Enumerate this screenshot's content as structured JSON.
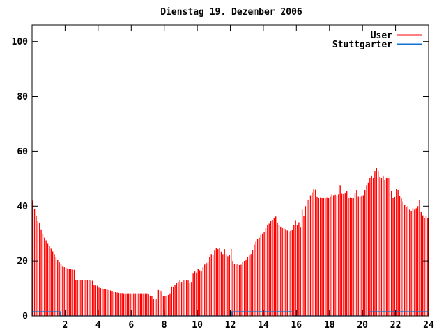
{
  "title": "Dienstag 19. Dezember 2006",
  "legend": {
    "position": "top-right",
    "entries": [
      {
        "label": "User",
        "color": "#ff0000"
      },
      {
        "label": "Stuttgarter",
        "color": "#0e72d2"
      }
    ]
  },
  "axes": {
    "x_tick_labels": [
      "2",
      "4",
      "6",
      "8",
      "10",
      "12",
      "14",
      "16",
      "18",
      "20",
      "22",
      "24"
    ],
    "y_tick_labels": [
      "0",
      "20",
      "40",
      "60",
      "80",
      "100"
    ]
  },
  "chart_data": {
    "type": "bar",
    "subtype": "gnuplot-impulses",
    "title": "Dienstag 19. Dezember 2006",
    "xlabel": "",
    "ylabel": "",
    "xlim": [
      0,
      24
    ],
    "ylim": [
      0,
      106
    ],
    "x_ticks": [
      2,
      4,
      6,
      8,
      10,
      12,
      14,
      16,
      18,
      20,
      22,
      24
    ],
    "y_ticks": [
      0,
      20,
      40,
      60,
      80,
      100
    ],
    "grid": false,
    "legend_position": "top-right",
    "series": [
      {
        "name": "User",
        "style": "impulses",
        "color": "#ff0000",
        "x_start": 0.0,
        "x_step": 0.1,
        "values": [
          42,
          39,
          36.5,
          34.5,
          34,
          31.5,
          30,
          28.5,
          27.5,
          26.5,
          25.5,
          24.5,
          23.5,
          22.5,
          21.5,
          20.5,
          19.5,
          18.8,
          18.2,
          17.8,
          17.5,
          17.3,
          17.1,
          17,
          16.9,
          16.8,
          13.2,
          13.1,
          13,
          13,
          13,
          13,
          13,
          13,
          13,
          12.9,
          12.8,
          11.2,
          11.1,
          11,
          10.3,
          10.1,
          10,
          9.8,
          9.7,
          9.5,
          9.4,
          9.3,
          9.1,
          8.9,
          8.7,
          8.5,
          8.4,
          8.3,
          8.3,
          8.2,
          8.2,
          8.2,
          8.2,
          8.2,
          8.2,
          8.2,
          8.2,
          8.2,
          8.2,
          8.2,
          8.2,
          8.2,
          8.2,
          8.2,
          8.1,
          7.4,
          7.3,
          6.2,
          6.0,
          6.3,
          9.4,
          9.2,
          9.1,
          7.3,
          7.1,
          7.2,
          7.6,
          8.2,
          10.7,
          10.4,
          11.4,
          12.0,
          12.4,
          13.0,
          12.4,
          13.2,
          12.9,
          13.2,
          12.9,
          11.9,
          12.4,
          15.4,
          16.2,
          15.8,
          17.0,
          16.6,
          16.2,
          17.9,
          18.7,
          19.2,
          19.6,
          21.3,
          22.5,
          22.1,
          23.8,
          24.6,
          24.3,
          24.6,
          23.4,
          22.5,
          24.3,
          22.5,
          21.7,
          22.1,
          24.4,
          20.0,
          19.0,
          18.7,
          19.0,
          18.5,
          18.6,
          19.5,
          20.0,
          20.5,
          21.5,
          22.0,
          22.5,
          24.0,
          26.0,
          27.0,
          28.0,
          28.5,
          29.5,
          30.0,
          30.6,
          32.0,
          33.0,
          33.6,
          34.5,
          35.0,
          35.7,
          36.2,
          34.0,
          33.0,
          32.5,
          32.0,
          31.8,
          31.6,
          31.1,
          30.8,
          31.0,
          31.2,
          33.0,
          34.9,
          33.2,
          34.1,
          32.4,
          38.7,
          36.3,
          40.0,
          42.2,
          42.1,
          44.0,
          45.0,
          46.4,
          46.0,
          43.4,
          43.0,
          43.2,
          43.0,
          43.1,
          43.0,
          43.2,
          43.0,
          43.5,
          44.3,
          44.0,
          44.2,
          44.0,
          44.3,
          47.6,
          44.5,
          44.4,
          44.6,
          45.6,
          43.0,
          43.2,
          43.0,
          43.1,
          44.7,
          45.9,
          43.5,
          43.4,
          43.6,
          44.0,
          45.9,
          47.6,
          48.5,
          50.2,
          51.0,
          50.2,
          52.7,
          54.0,
          52.7,
          50.6,
          50.2,
          51.0,
          49.7,
          50.2,
          50.2,
          50.2,
          45.5,
          43.0,
          43.4,
          46.4,
          45.9,
          43.8,
          43.0,
          41.7,
          40.4,
          39.6,
          40.0,
          38.7,
          38.3,
          39.2,
          38.7,
          39.2,
          40.0,
          42.1,
          37.9,
          36.6,
          35.7,
          36.2,
          35.5
        ]
      },
      {
        "name": "Stuttgarter",
        "style": "steps",
        "color": "#0e72d2",
        "segments": [
          {
            "x0": 0.0,
            "x1": 1.7,
            "y": 1.5
          },
          {
            "x0": 1.7,
            "x1": 12.1,
            "y": 0
          },
          {
            "x0": 12.1,
            "x1": 15.8,
            "y": 1.5
          },
          {
            "x0": 15.8,
            "x1": 20.4,
            "y": 0
          },
          {
            "x0": 20.4,
            "x1": 24.0,
            "y": 1.5
          }
        ]
      }
    ]
  }
}
